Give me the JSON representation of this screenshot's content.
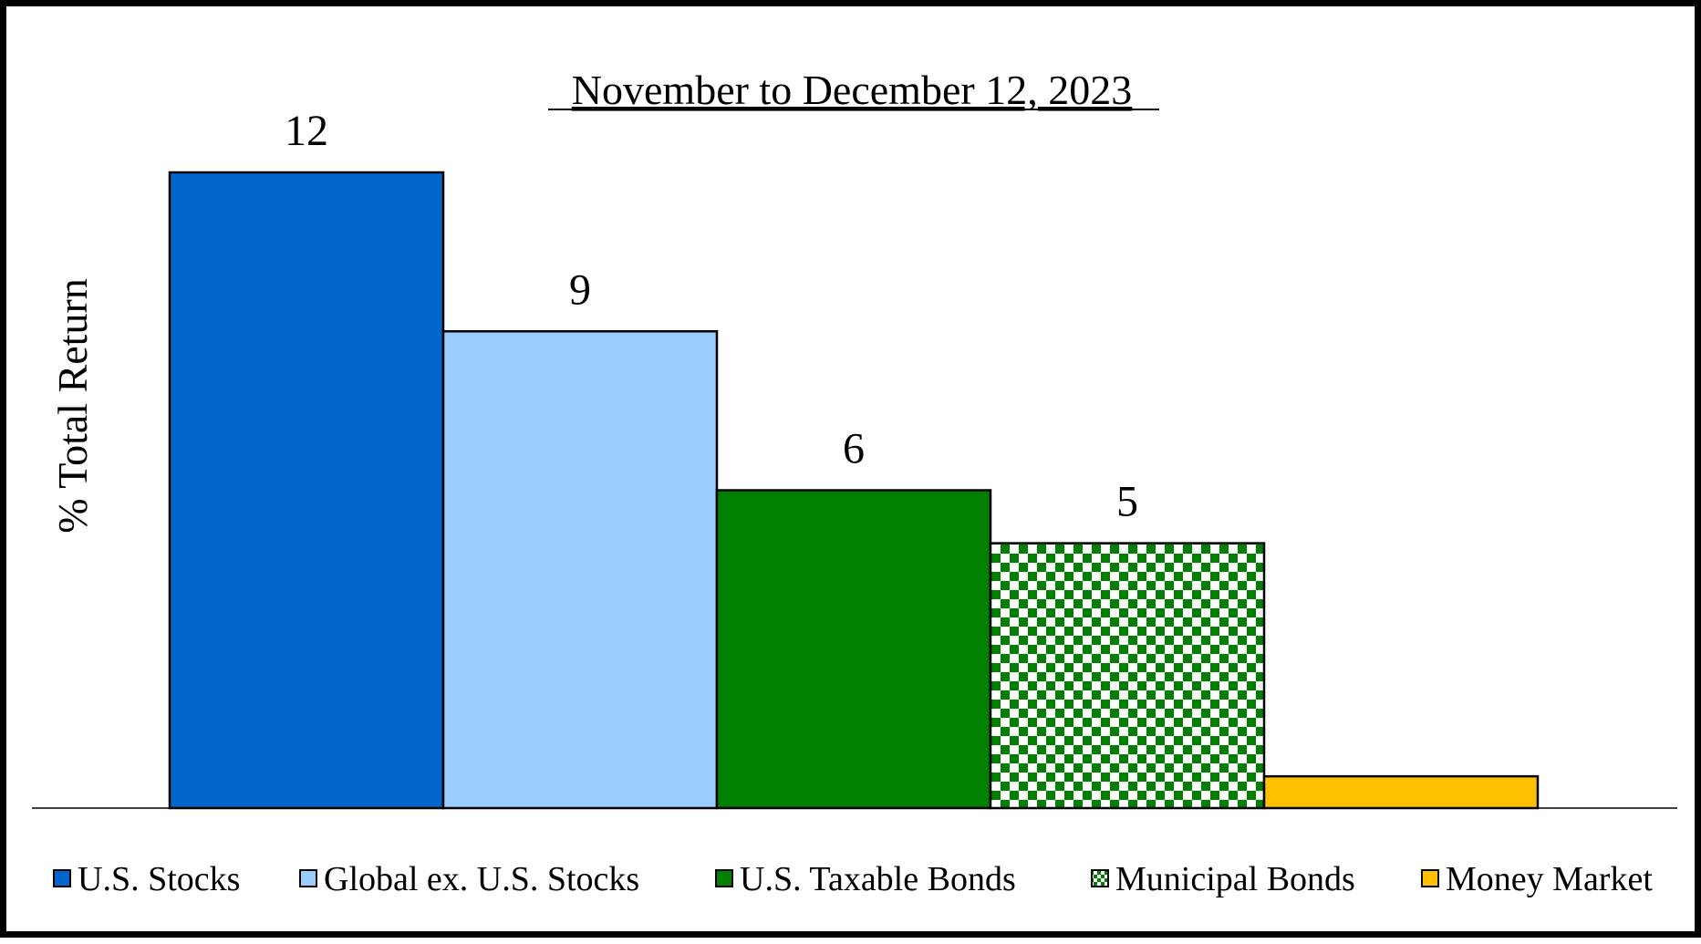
{
  "chart_data": {
    "type": "bar",
    "title": "November to December 12, 2023",
    "xlabel": "",
    "ylabel": "% Total Return",
    "ylim": [
      0,
      12
    ],
    "grid": false,
    "legend_position": "bottom",
    "categories": [
      "U.S. Stocks",
      "Global ex. U.S. Stocks",
      "U.S. Taxable Bonds",
      "Municipal Bonds",
      "Money Market"
    ],
    "values": [
      12,
      9,
      6,
      5,
      0.6
    ],
    "data_labels": [
      "12",
      "9",
      "6",
      "5",
      ""
    ],
    "colors": [
      "#0066cc",
      "#99ccff",
      "#008000",
      "#008000",
      "#ffc000"
    ],
    "patterns": [
      "solid",
      "solid",
      "solid",
      "checkerboard",
      "solid"
    ],
    "pattern_background": "#ffffff"
  }
}
